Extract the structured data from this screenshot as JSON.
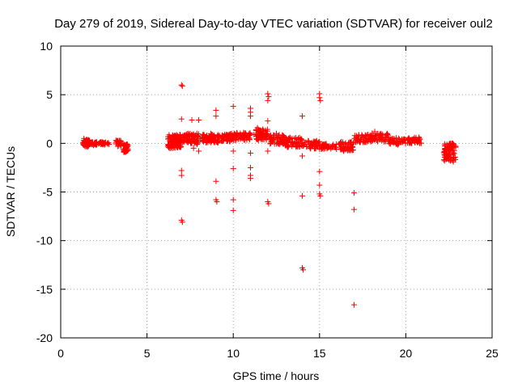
{
  "chart_data": {
    "type": "scatter",
    "title": "Day 279 of 2019, Sidereal Day-to-day VTEC variation (SDTVAR) for receiver oul2",
    "xlabel": "GPS time / hours",
    "ylabel": "SDTVAR / TECUs",
    "xlim": [
      0,
      25
    ],
    "ylim": [
      -20,
      10
    ],
    "xticks": [
      0,
      5,
      10,
      15,
      20,
      25
    ],
    "yticks": [
      -20,
      -15,
      -10,
      -5,
      0,
      5,
      10
    ],
    "grid": true,
    "marker": "+",
    "color": "#ff0000",
    "series": [
      {
        "name": "SDTVAR",
        "points": [
          [
            1.35,
            0.5
          ],
          [
            1.4,
            -0.3
          ],
          [
            1.45,
            0.2
          ],
          [
            1.5,
            0.4
          ],
          [
            1.55,
            -0.2
          ],
          [
            1.6,
            0.1
          ],
          [
            1.65,
            0.3
          ],
          [
            1.7,
            -0.1
          ],
          [
            1.8,
            0.0
          ],
          [
            1.9,
            -0.2
          ],
          [
            2.0,
            0.1
          ],
          [
            2.1,
            -0.1
          ],
          [
            2.2,
            0.0
          ],
          [
            2.3,
            0.1
          ],
          [
            2.4,
            -0.1
          ],
          [
            2.5,
            0.0
          ],
          [
            2.6,
            0.1
          ],
          [
            2.7,
            0.0
          ],
          [
            2.8,
            -0.1
          ],
          [
            3.2,
            0.3
          ],
          [
            3.3,
            -0.3
          ],
          [
            3.4,
            0.1
          ],
          [
            3.5,
            -0.2
          ],
          [
            3.6,
            0.0
          ],
          [
            3.7,
            -0.6
          ],
          [
            3.75,
            -0.9
          ],
          [
            3.8,
            -0.4
          ],
          [
            3.85,
            -0.1
          ],
          [
            3.9,
            -0.7
          ],
          [
            6.3,
            0.5
          ],
          [
            6.35,
            -0.5
          ],
          [
            6.4,
            0.2
          ],
          [
            6.45,
            -0.3
          ],
          [
            6.5,
            0.8
          ],
          [
            6.55,
            -0.1
          ],
          [
            6.6,
            0.3
          ],
          [
            6.65,
            0.0
          ],
          [
            6.7,
            0.6
          ],
          [
            6.75,
            -0.2
          ],
          [
            6.8,
            0.4
          ],
          [
            6.85,
            0.1
          ],
          [
            6.9,
            0.9
          ],
          [
            6.95,
            -0.4
          ],
          [
            7.0,
            6.0
          ],
          [
            7.05,
            5.9
          ],
          [
            7.0,
            2.5
          ],
          [
            7.0,
            -2.8
          ],
          [
            7.0,
            -3.3
          ],
          [
            7.0,
            -7.9
          ],
          [
            7.05,
            -8.1
          ],
          [
            7.1,
            0.2
          ],
          [
            7.2,
            0.8
          ],
          [
            7.3,
            0.5
          ],
          [
            7.4,
            1.0
          ],
          [
            7.5,
            0.3
          ],
          [
            7.6,
            0.7
          ],
          [
            7.7,
            0.4
          ],
          [
            7.8,
            0.6
          ],
          [
            7.9,
            -0.1
          ],
          [
            7.6,
            2.4
          ],
          [
            7.7,
            -0.5
          ],
          [
            8.0,
            2.4
          ],
          [
            8.0,
            -0.8
          ],
          [
            8.1,
            0.5
          ],
          [
            8.3,
            0.9
          ],
          [
            8.5,
            0.1
          ],
          [
            8.6,
            0.7
          ],
          [
            8.7,
            1.0
          ],
          [
            8.8,
            0.5
          ],
          [
            8.9,
            0.2
          ],
          [
            9.0,
            3.4
          ],
          [
            9.0,
            2.8
          ],
          [
            9.0,
            -3.9
          ],
          [
            9.0,
            -5.8
          ],
          [
            9.05,
            -6.0
          ],
          [
            9.2,
            0.8
          ],
          [
            9.4,
            0.3
          ],
          [
            9.6,
            0.9
          ],
          [
            9.8,
            0.4
          ],
          [
            9.9,
            1.0
          ],
          [
            10.0,
            3.8
          ],
          [
            10.0,
            -0.8
          ],
          [
            10.0,
            -2.6
          ],
          [
            10.0,
            -5.8
          ],
          [
            10.0,
            -6.9
          ],
          [
            10.2,
            0.6
          ],
          [
            10.4,
            0.9
          ],
          [
            10.6,
            1.1
          ],
          [
            10.8,
            0.7
          ],
          [
            11.0,
            3.6
          ],
          [
            11.0,
            3.2
          ],
          [
            11.0,
            2.8
          ],
          [
            11.0,
            -1.0
          ],
          [
            11.0,
            -2.5
          ],
          [
            11.0,
            -3.3
          ],
          [
            11.0,
            -3.6
          ],
          [
            11.2,
            0.9
          ],
          [
            11.4,
            1.6
          ],
          [
            11.6,
            1.3
          ],
          [
            11.8,
            0.8
          ],
          [
            11.9,
            0.5
          ],
          [
            12.0,
            5.1
          ],
          [
            12.05,
            4.8
          ],
          [
            12.0,
            4.4
          ],
          [
            12.0,
            2.3
          ],
          [
            12.0,
            -0.8
          ],
          [
            12.0,
            -6.0
          ],
          [
            12.05,
            -6.2
          ],
          [
            12.2,
            0.6
          ],
          [
            12.5,
            1.0
          ],
          [
            12.8,
            0.3
          ],
          [
            13.2,
            0.5
          ],
          [
            13.5,
            -0.1
          ],
          [
            13.7,
            0.4
          ],
          [
            13.9,
            0.2
          ],
          [
            14.0,
            2.8
          ],
          [
            14.0,
            -1.3
          ],
          [
            14.0,
            -5.4
          ],
          [
            14.0,
            -12.8
          ],
          [
            14.05,
            -13.0
          ],
          [
            14.2,
            0.1
          ],
          [
            14.5,
            -0.3
          ],
          [
            14.8,
            0.0
          ],
          [
            15.0,
            5.1
          ],
          [
            15.0,
            4.7
          ],
          [
            15.05,
            4.4
          ],
          [
            15.0,
            -2.9
          ],
          [
            15.0,
            -4.3
          ],
          [
            15.0,
            -5.2
          ],
          [
            15.05,
            -5.4
          ],
          [
            15.2,
            -0.2
          ],
          [
            15.5,
            -0.4
          ],
          [
            15.8,
            -0.3
          ],
          [
            16.2,
            -0.4
          ],
          [
            16.4,
            -0.8
          ],
          [
            16.6,
            -0.3
          ],
          [
            16.8,
            0.1
          ],
          [
            17.0,
            -5.1
          ],
          [
            17.0,
            -6.8
          ],
          [
            17.0,
            -16.6
          ],
          [
            17.2,
            0.3
          ],
          [
            17.5,
            0.6
          ],
          [
            17.8,
            0.9
          ],
          [
            18.2,
            1.2
          ],
          [
            18.5,
            0.8
          ],
          [
            18.8,
            0.4
          ],
          [
            19.2,
            0.3
          ],
          [
            19.5,
            0.0
          ],
          [
            19.8,
            0.1
          ],
          [
            20.3,
            0.2
          ],
          [
            20.5,
            0.6
          ],
          [
            20.7,
            0.1
          ],
          [
            22.3,
            -0.6
          ],
          [
            22.4,
            -1.3
          ],
          [
            22.5,
            -1.7
          ],
          [
            22.6,
            -0.8
          ],
          [
            22.7,
            -0.3
          ],
          [
            22.75,
            -1.9
          ]
        ]
      }
    ],
    "clusters": [
      {
        "x0": 1.3,
        "x1": 1.7,
        "y": 0.0,
        "amp": 0.35,
        "n": 60
      },
      {
        "x0": 1.7,
        "x1": 2.8,
        "y": 0.0,
        "amp": 0.15,
        "n": 40
      },
      {
        "x0": 3.2,
        "x1": 3.5,
        "y": 0.0,
        "amp": 0.3,
        "n": 20
      },
      {
        "x0": 3.6,
        "x1": 3.95,
        "y": -0.5,
        "amp": 0.45,
        "n": 30
      },
      {
        "x0": 6.2,
        "x1": 7.0,
        "y": 0.2,
        "amp": 0.7,
        "n": 90
      },
      {
        "x0": 7.0,
        "x1": 8.0,
        "y": 0.5,
        "amp": 0.5,
        "n": 70
      },
      {
        "x0": 8.2,
        "x1": 9.2,
        "y": 0.5,
        "amp": 0.45,
        "n": 70
      },
      {
        "x0": 9.3,
        "x1": 10.0,
        "y": 0.6,
        "amp": 0.4,
        "n": 50
      },
      {
        "x0": 10.0,
        "x1": 11.0,
        "y": 0.7,
        "amp": 0.4,
        "n": 60
      },
      {
        "x0": 11.3,
        "x1": 12.0,
        "y": 0.9,
        "amp": 0.6,
        "n": 70
      },
      {
        "x0": 12.1,
        "x1": 13.0,
        "y": 0.4,
        "amp": 0.5,
        "n": 60
      },
      {
        "x0": 13.0,
        "x1": 14.0,
        "y": 0.1,
        "amp": 0.5,
        "n": 60
      },
      {
        "x0": 14.0,
        "x1": 15.0,
        "y": -0.1,
        "amp": 0.45,
        "n": 50
      },
      {
        "x0": 15.0,
        "x1": 16.0,
        "y": -0.3,
        "amp": 0.3,
        "n": 40
      },
      {
        "x0": 16.1,
        "x1": 17.0,
        "y": -0.3,
        "amp": 0.45,
        "n": 50
      },
      {
        "x0": 17.0,
        "x1": 18.0,
        "y": 0.5,
        "amp": 0.4,
        "n": 50
      },
      {
        "x0": 18.0,
        "x1": 19.0,
        "y": 0.6,
        "amp": 0.45,
        "n": 50
      },
      {
        "x0": 19.0,
        "x1": 20.0,
        "y": 0.2,
        "amp": 0.35,
        "n": 50
      },
      {
        "x0": 20.1,
        "x1": 20.9,
        "y": 0.3,
        "amp": 0.35,
        "n": 40
      },
      {
        "x0": 22.2,
        "x1": 22.9,
        "y": -0.9,
        "amp": 0.9,
        "n": 80
      }
    ]
  }
}
